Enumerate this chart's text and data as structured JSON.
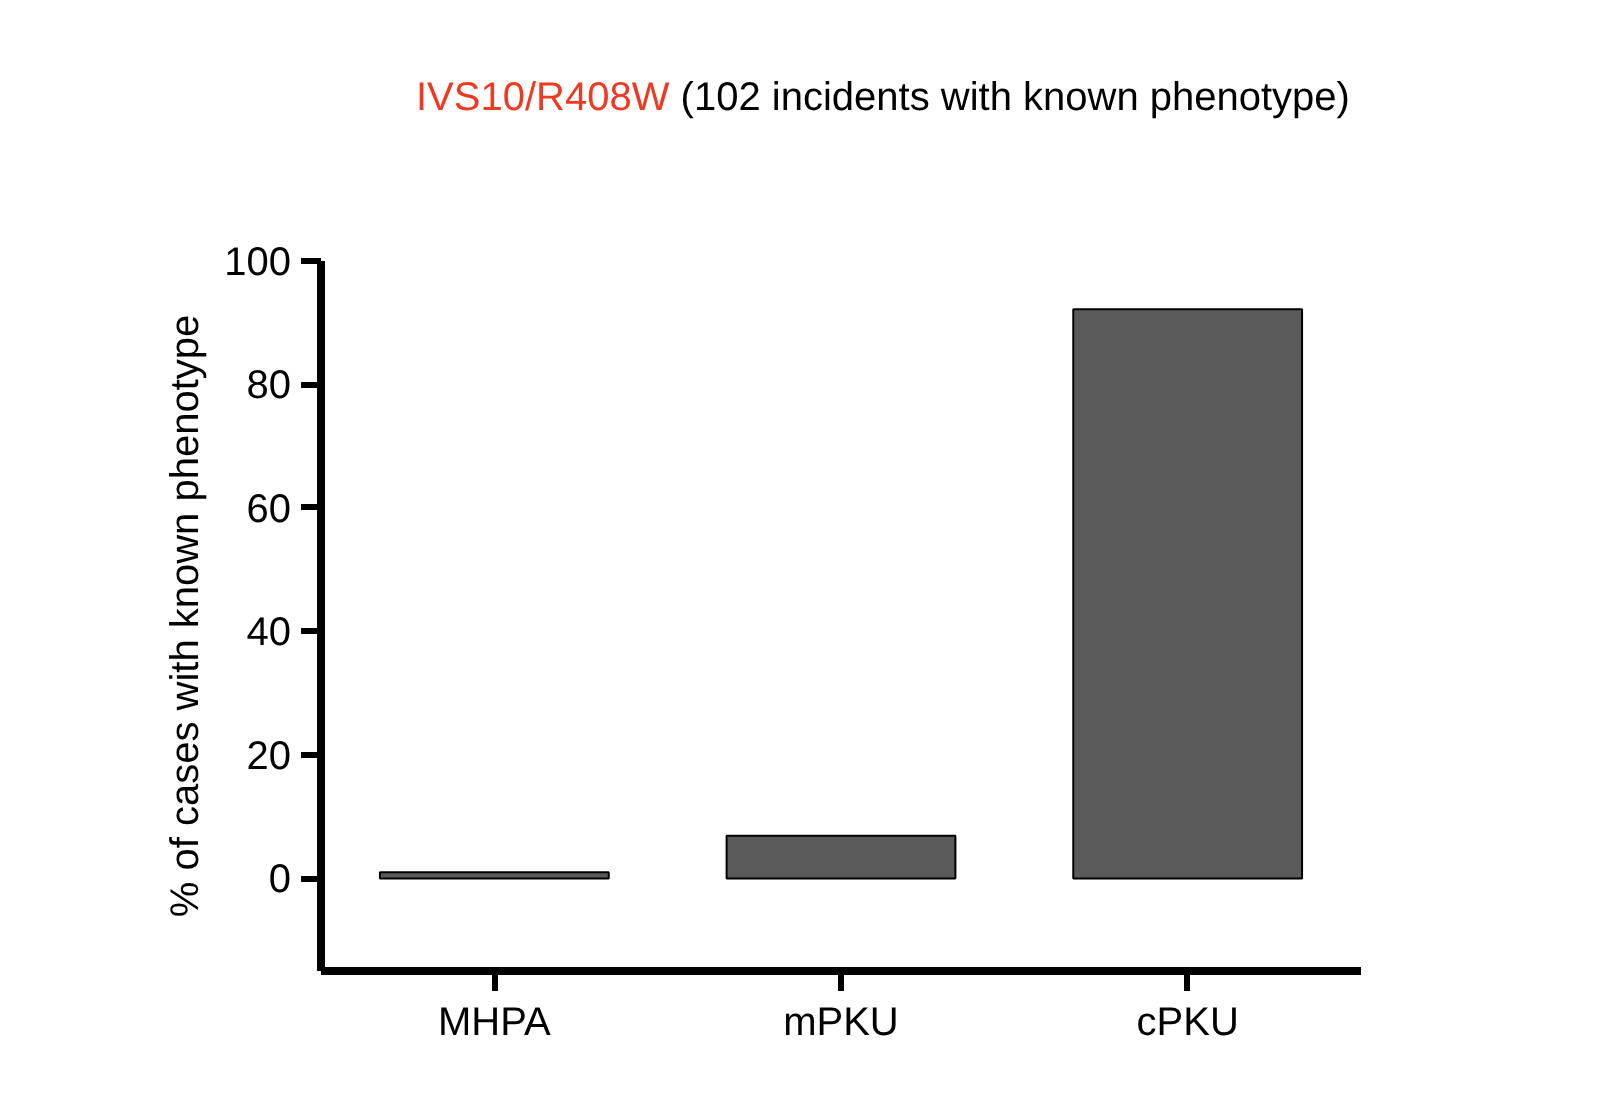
{
  "chart_data": {
    "type": "bar",
    "title": "IVS10/R408W (102 incidents with known phenotype)",
    "ylabel": "% of cases with known phenotype",
    "categories": [
      "MHPA",
      "mPKU",
      "cPKU"
    ],
    "values": [
      1,
      6.9,
      92.2
    ],
    "color": "#5a5a5a",
    "ylim": [
      -15,
      100
    ],
    "yticks": [
      0,
      20,
      40,
      60,
      80,
      100
    ],
    "grid": false
  }
}
